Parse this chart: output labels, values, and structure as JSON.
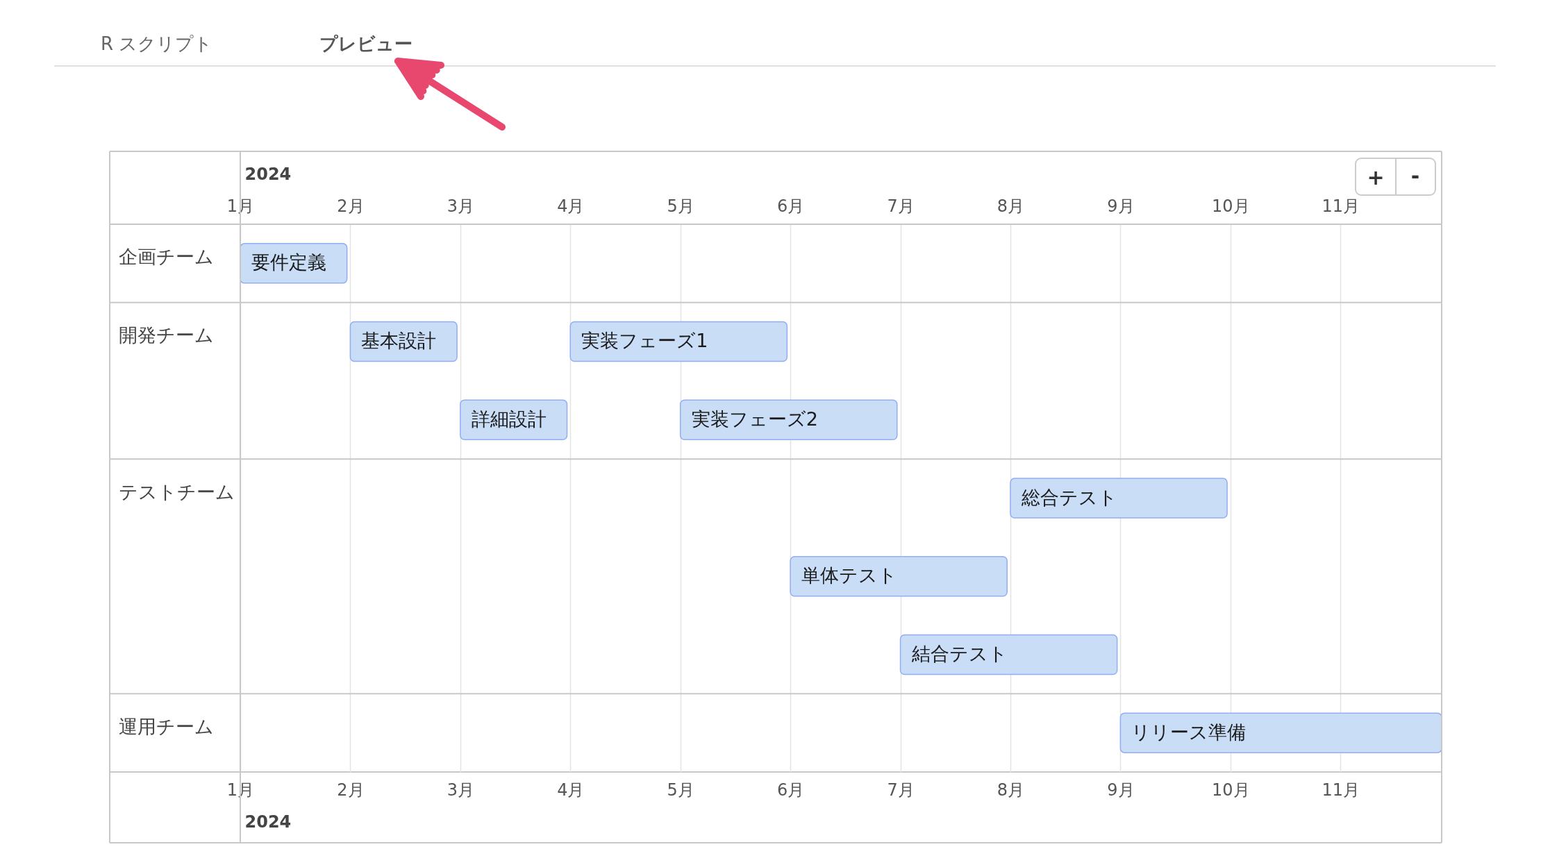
{
  "chart_data": {
    "type": "bar",
    "orientation": "horizontal",
    "categories": [
      "企画チーム",
      "開発チーム",
      null,
      "テストチーム",
      null,
      null,
      "運用チーム"
    ],
    "series": [
      {
        "color": "#c9ddf7",
        "base": [
          1,
          2,
          3,
          8,
          6,
          7,
          9
        ],
        "values": [
          0.97,
          0.97,
          0.97,
          1.97,
          1.97,
          1.97,
          2.92
        ],
        "value_labels": [
          "要件定義",
          "基本設計",
          "詳細設計",
          "総合テスト",
          "単体テスト",
          "結合テスト",
          "リリース準備"
        ]
      },
      {
        "color": "#c9ddf7",
        "base": [
          null,
          4,
          5,
          null,
          null,
          null,
          null
        ],
        "values": [
          null,
          1.97,
          1.97,
          null,
          null,
          null,
          null
        ],
        "value_labels": [
          null,
          "実装フェーズ1",
          "実装フェーズ2",
          null,
          null,
          null,
          null
        ]
      }
    ],
    "xlim": [
      1,
      11.92
    ],
    "xticks": [
      {
        "value": 1,
        "label": "1月"
      },
      {
        "value": 2,
        "label": "2月"
      },
      {
        "value": 3,
        "label": "3月"
      },
      {
        "value": 4,
        "label": "4月"
      },
      {
        "value": 5,
        "label": "5月"
      },
      {
        "value": 6,
        "label": "6月"
      },
      {
        "value": 7,
        "label": "7月"
      },
      {
        "value": 8,
        "label": "8月"
      },
      {
        "value": 9,
        "label": "9月"
      },
      {
        "value": 10,
        "label": "10月"
      },
      {
        "value": 11,
        "label": "11月"
      }
    ],
    "xlabel": "2024",
    "x2lim": [
      1,
      11.92
    ],
    "x2ticks": [
      {
        "value": 1,
        "label": "1月"
      },
      {
        "value": 2,
        "label": "2月"
      },
      {
        "value": 3,
        "label": "3月"
      },
      {
        "value": 4,
        "label": "4月"
      },
      {
        "value": 5,
        "label": "5月"
      },
      {
        "value": 6,
        "label": "6月"
      },
      {
        "value": 7,
        "label": "7月"
      },
      {
        "value": 8,
        "label": "8月"
      },
      {
        "value": 9,
        "label": "9月"
      },
      {
        "value": 10,
        "label": "10月"
      },
      {
        "value": 11,
        "label": "11月"
      }
    ],
    "x2label": "2024",
    "grid": "x",
    "annotations": [
      "R スクリプト",
      "プレビュー",
      "+",
      "-"
    ]
  }
}
